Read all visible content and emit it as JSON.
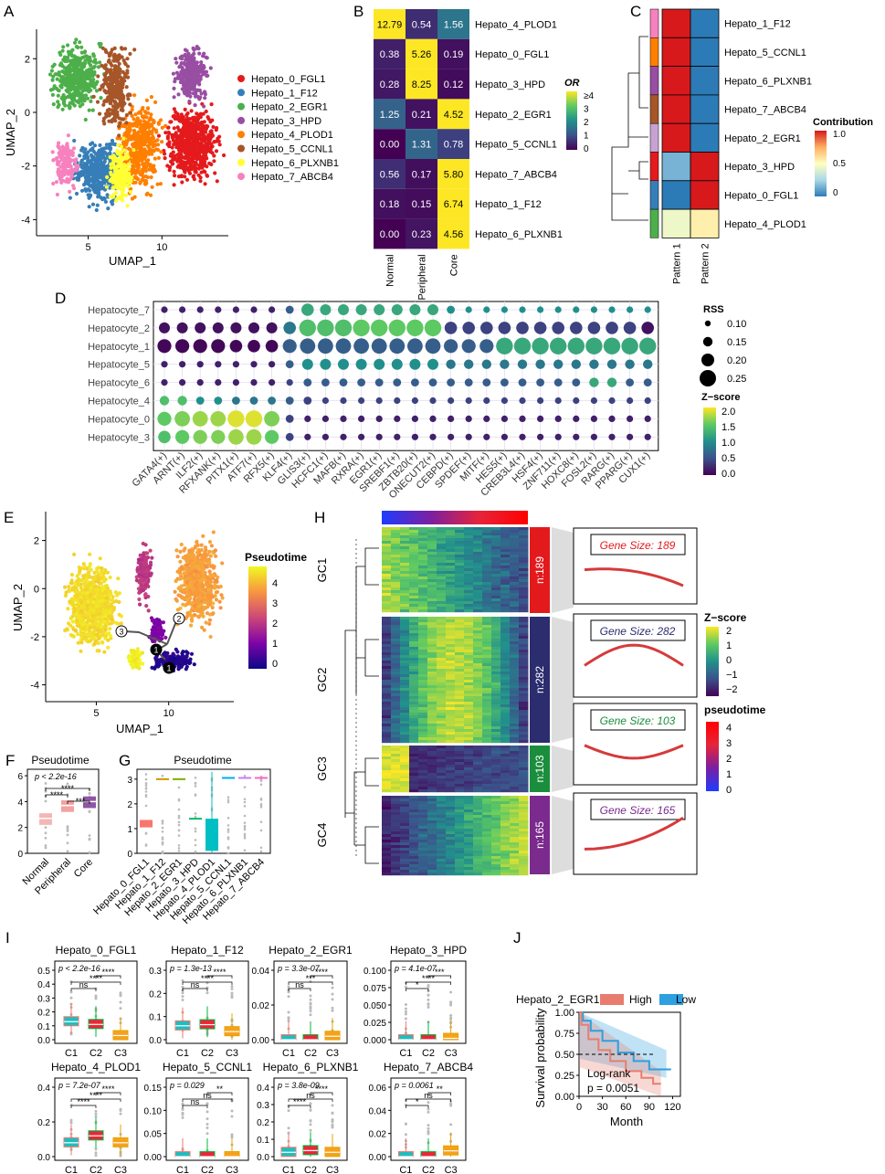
{
  "panels": {
    "A": "A",
    "B": "B",
    "C": "C",
    "D": "D",
    "E": "E",
    "F": "F",
    "G": "G",
    "H": "H",
    "I": "I",
    "J": "J"
  },
  "clusters": [
    "Hepato_0_FGL1",
    "Hepato_1_F12",
    "Hepato_2_EGR1",
    "Hepato_3_HPD",
    "Hepato_4_PLOD1",
    "Hepato_5_CCNL1",
    "Hepato_6_PLXNB1",
    "Hepato_7_ABCB4"
  ],
  "colors": {
    "c0": "#E41A1C",
    "c1": "#377EB8",
    "c2": "#4DAF4A",
    "c3": "#984EA3",
    "c4": "#FF7F00",
    "c5": "#A65628",
    "c6": "#FFFF33",
    "c7": "#F781BF",
    "c1_f": "#F8766D",
    "c2_f": "#00BA38",
    "c3_f": "#E7A300",
    "hi": "#E87D6F",
    "lo": "#2E9FDF"
  },
  "chart_data": [
    {
      "panel": "A",
      "type": "scatter",
      "title": "",
      "xlabel": "UMAP_1",
      "ylabel": "UMAP_2",
      "xticks": [
        5,
        10
      ],
      "yticks": [
        2,
        0,
        -2,
        -4
      ],
      "xlim": [
        1.5,
        14.5
      ],
      "ylim": [
        -4.6,
        3.1
      ],
      "legend": [
        "Hepato_0_FGL1",
        "Hepato_1_F12",
        "Hepato_2_EGR1",
        "Hepato_3_HPD",
        "Hepato_4_PLOD1",
        "Hepato_5_CCNL1",
        "Hepato_6_PLXNB1",
        "Hepato_7_ABCB4"
      ]
    },
    {
      "panel": "B",
      "type": "heatmap",
      "rows": [
        "Hepato_4_PLOD1",
        "Hepato_0_FGL1",
        "Hepato_3_HPD",
        "Hepato_2_EGR1",
        "Hepato_5_CCNL1",
        "Hepato_7_ABCB4",
        "Hepato_1_F12",
        "Hepato_6_PLXNB1"
      ],
      "columns": [
        "Normal",
        "Peripheral",
        "Core"
      ],
      "values": [
        [
          "12.79",
          "0.54",
          "1.56"
        ],
        [
          "0.38",
          "5.26",
          "0.19"
        ],
        [
          "0.28",
          "8.25",
          "0.12"
        ],
        [
          "1.25",
          "0.21",
          "4.52"
        ],
        [
          "0.00",
          "1.31",
          "0.78"
        ],
        [
          "0.56",
          "0.17",
          "5.80"
        ],
        [
          "0.18",
          "0.15",
          "6.74"
        ],
        [
          "0.00",
          "0.23",
          "4.56"
        ]
      ],
      "legend_title": "OR",
      "legend_ticks": [
        "≥4",
        "3",
        "2",
        "1",
        "0"
      ]
    },
    {
      "panel": "C",
      "type": "heatmap",
      "rows": [
        "Hepato_1_F12",
        "Hepato_5_CCNL1",
        "Hepato_6_PLXNB1",
        "Hepato_7_ABCB4",
        "Hepato_2_EGR1",
        "Hepato_3_HPD",
        "Hepato_0_FGL1",
        "Hepato_4_PLOD1"
      ],
      "columns": [
        "Pattern 1",
        "Pattern 2"
      ],
      "values": [
        [
          1.0,
          0.0
        ],
        [
          1.0,
          0.0
        ],
        [
          1.0,
          0.0
        ],
        [
          1.0,
          0.0
        ],
        [
          1.0,
          0.0
        ],
        [
          0.15,
          1.0
        ],
        [
          0.0,
          1.0
        ],
        [
          0.45,
          0.55
        ]
      ],
      "legend_title": "Contribution",
      "legend_ticks": [
        "1.0",
        "0.5",
        "0"
      ]
    },
    {
      "panel": "D",
      "type": "scatter",
      "rows": [
        "Hepatocyte_7",
        "Hepatocyte_2",
        "Hepatocyte_1",
        "Hepatocyte_5",
        "Hepatocyte_6",
        "Hepatocyte_4",
        "Hepatocyte_0",
        "Hepatocyte_3"
      ],
      "columns": [
        "GATA4(+)",
        "ARNT(+)",
        "ILF2(+)",
        "RFXANK(+)",
        "PITX1(+)",
        "ATF7(+)",
        "RFX5(+)",
        "KLF4(+)",
        "GLIS3(+)",
        "HCFC1(+)",
        "MAFB(+)",
        "RXRA(+)",
        "EGR1(+)",
        "SREBF1(+)",
        "ZBTB20(+)",
        "ONECUT2(+)",
        "CEBPD(+)",
        "SPDEF(+)",
        "MITF(+)",
        "HES5(+)",
        "CREB3L4(+)",
        "HSF4(+)",
        "ZNF711(+)",
        "HOXC8(+)",
        "FOSL2(+)",
        "RARG(+)",
        "PPARG(+)",
        "CUX1(+)"
      ],
      "size_title": "RSS",
      "size_ticks": [
        "0.10",
        "0.15",
        "0.20",
        "0.25"
      ],
      "color_title": "Z−score",
      "color_ticks": [
        "2.0",
        "1.5",
        "1.0",
        "0.5",
        "0.0"
      ]
    },
    {
      "panel": "E",
      "type": "scatter",
      "xlabel": "UMAP_1",
      "ylabel": "UMAP_2",
      "xticks": [
        5,
        10
      ],
      "yticks": [
        2,
        0,
        -2,
        -4
      ],
      "legend_title": "Pseudotime",
      "legend_ticks": [
        "4",
        "3",
        "2",
        "1",
        "0"
      ],
      "nodes": [
        "3",
        "2",
        "1",
        "1"
      ]
    },
    {
      "panel": "F",
      "type": "box",
      "title": "Pseudotime",
      "categories": [
        "Normal",
        "Peripheral",
        "Core"
      ],
      "yticks": [
        0,
        2,
        4,
        6
      ],
      "pvalue": "p < 2.2e-16",
      "sig": [
        "****",
        "****",
        "***"
      ]
    },
    {
      "panel": "G",
      "type": "box",
      "title": "Pseudotime",
      "categories": [
        "Hepato_0_FGL1",
        "Hepato_1_F12",
        "Hepato_2_EGR1",
        "Hepato_3_HPD",
        "Hepato_4_PLOD1",
        "Hepato_5_CCNL1",
        "Hepato_6_PLXNB1",
        "Hepato_7_ABCB4"
      ],
      "yticks": [
        0,
        1,
        2,
        3
      ],
      "medians": [
        1.2,
        3.0,
        3.0,
        1.4,
        0.35,
        3.05,
        3.05,
        3.05
      ]
    },
    {
      "panel": "H",
      "type": "heatmap",
      "clusters": [
        {
          "label": "GC1",
          "n": "n:189",
          "size": "Gene Size: 189",
          "color": "#E31A1C"
        },
        {
          "label": "GC2",
          "n": "n:282",
          "size": "Gene Size: 282",
          "color": "#2C2D6E"
        },
        {
          "label": "GC3",
          "n": "n:103",
          "size": "Gene Size: 103",
          "color": "#1B8E3E"
        },
        {
          "label": "GC4",
          "n": "n:165",
          "size": "Gene Size: 165",
          "color": "#7B2A8E"
        }
      ],
      "zscore_title": "Z−score",
      "zscore_ticks": [
        "2",
        "1",
        "0",
        "−1",
        "−2"
      ],
      "pt_title": "pseudotime",
      "pt_ticks": [
        "4",
        "3",
        "2",
        "1",
        "0"
      ]
    },
    {
      "panel": "I",
      "type": "box",
      "categories": [
        "C1",
        "C2",
        "C3"
      ],
      "subplots": [
        {
          "title": "Hepato_0_FGL1",
          "p": "p < 2.2e-16",
          "yticks": [
            "0.0",
            "0.1",
            "0.2",
            "0.3",
            "0.4",
            "0.5"
          ],
          "sig": [
            "ns",
            "****",
            "****"
          ]
        },
        {
          "title": "Hepato_1_F12",
          "p": "p = 1.3e-13",
          "yticks": [
            "0.0",
            "0.1",
            "0.2",
            "0.3"
          ],
          "sig": [
            "ns",
            "****",
            "****"
          ]
        },
        {
          "title": "Hepato_2_EGR1",
          "p": "p = 3.3e-07",
          "yticks": [
            "0.00",
            "0.02",
            "0.04"
          ],
          "sig": [
            "ns",
            "***",
            "****"
          ]
        },
        {
          "title": "Hepato_3_HPD",
          "p": "p = 4.1e-07",
          "yticks": [
            "0.000",
            "0.025",
            "0.050",
            "0.075",
            "0.100"
          ],
          "sig": [
            "*",
            "****",
            "***"
          ]
        },
        {
          "title": "Hepato_4_PLOD1",
          "p": "p = 7.2e-07",
          "yticks": [
            "0.0",
            "0.2",
            "0.4"
          ],
          "sig": [
            "****",
            "****",
            "****"
          ]
        },
        {
          "title": "Hepato_5_CCNL1",
          "p": "p = 0.029",
          "yticks": [
            "0.00",
            "0.05",
            "0.10",
            "0.15"
          ],
          "sig": [
            "ns",
            "ns",
            "**"
          ]
        },
        {
          "title": "Hepato_6_PLXNB1",
          "p": "p = 3.8e-09",
          "yticks": [
            "0.0",
            "0.1",
            "0.2",
            "0.3",
            "0.4"
          ],
          "sig": [
            "****",
            "ns",
            "****"
          ]
        },
        {
          "title": "Hepato_7_ABCB4",
          "p": "p = 0.0061",
          "yticks": [
            "0.00",
            "0.02",
            "0.04",
            "0.06"
          ],
          "sig": [
            "*",
            "ns",
            "**"
          ]
        }
      ]
    },
    {
      "panel": "J",
      "type": "line",
      "title": "Hepato_2_EGR1",
      "legend": [
        "High",
        "Low"
      ],
      "xlabel": "Month",
      "ylabel": "Survival probability",
      "xticks": [
        "0",
        "30",
        "60",
        "90",
        "120"
      ],
      "yticks": [
        "0.00",
        "0.25",
        "0.50",
        "0.75",
        "1.00"
      ],
      "annot1": "Log-rank",
      "annot2": "p = 0.0051"
    }
  ]
}
